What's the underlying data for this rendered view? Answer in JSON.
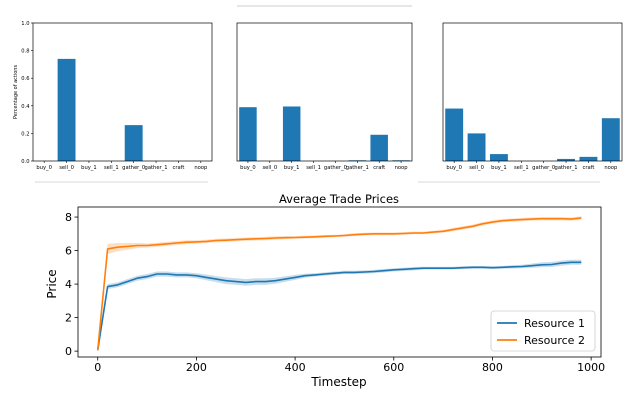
{
  "chart_data": [
    {
      "type": "bar",
      "ylabel": "Percentage of actions",
      "ylim": [
        0,
        1.0
      ],
      "yticks": [
        "0.0",
        "0.2",
        "0.4",
        "0.6",
        "0.8",
        "1.0"
      ],
      "categories": [
        "buy_0",
        "sell_0",
        "buy_1",
        "sell_1",
        "gather_0",
        "gather_1",
        "craft",
        "noop"
      ],
      "values": [
        0,
        0.74,
        0,
        0,
        0.26,
        0,
        0,
        0
      ],
      "color": "#1f77b4"
    },
    {
      "type": "bar",
      "ylim": [
        0,
        1.0
      ],
      "categories": [
        "buy_0",
        "sell_0",
        "buy_1",
        "sell_1",
        "gather_0",
        "gather_1",
        "craft",
        "noop"
      ],
      "values": [
        0.39,
        0,
        0.395,
        0,
        0,
        0.005,
        0.19,
        0.005
      ],
      "color": "#1f77b4"
    },
    {
      "type": "bar",
      "ylim": [
        0,
        1.0
      ],
      "categories": [
        "buy_0",
        "sell_0",
        "buy_1",
        "sell_1",
        "gather_0",
        "gather_1",
        "craft",
        "noop"
      ],
      "values": [
        0.38,
        0.2,
        0.05,
        0,
        0,
        0.015,
        0.03,
        0.31
      ],
      "color": "#1f77b4"
    },
    {
      "type": "line",
      "title": "Average Trade Prices",
      "xlabel": "Timestep",
      "ylabel": "Price",
      "xlim": [
        -40,
        1020
      ],
      "ylim": [
        -0.35,
        8.6
      ],
      "xticks": [
        0,
        200,
        400,
        600,
        800,
        1000
      ],
      "yticks": [
        0,
        2,
        4,
        6,
        8
      ],
      "legend_position": "bottom-right",
      "series": [
        {
          "name": "Resource 1",
          "color": "#1f77b4",
          "x": [
            0,
            20,
            40,
            60,
            80,
            100,
            120,
            140,
            160,
            180,
            200,
            220,
            240,
            260,
            280,
            300,
            320,
            340,
            360,
            380,
            400,
            420,
            440,
            460,
            480,
            500,
            520,
            540,
            560,
            580,
            600,
            620,
            640,
            660,
            680,
            700,
            720,
            740,
            760,
            780,
            800,
            820,
            840,
            860,
            880,
            900,
            920,
            940,
            960,
            980
          ],
          "y": [
            0.05,
            3.85,
            3.95,
            4.15,
            4.35,
            4.45,
            4.6,
            4.6,
            4.55,
            4.55,
            4.5,
            4.4,
            4.3,
            4.2,
            4.15,
            4.1,
            4.15,
            4.15,
            4.2,
            4.3,
            4.4,
            4.5,
            4.55,
            4.6,
            4.65,
            4.7,
            4.7,
            4.72,
            4.75,
            4.8,
            4.85,
            4.88,
            4.92,
            4.95,
            4.95,
            4.95,
            4.95,
            4.98,
            5.0,
            5.0,
            4.98,
            5.0,
            5.03,
            5.05,
            5.1,
            5.15,
            5.17,
            5.25,
            5.3,
            5.3
          ],
          "band": [
            0,
            0.15,
            0.15,
            0.15,
            0.15,
            0.15,
            0.15,
            0.15,
            0.15,
            0.15,
            0.15,
            0.17,
            0.18,
            0.2,
            0.2,
            0.2,
            0.2,
            0.2,
            0.18,
            0.17,
            0.15,
            0.12,
            0.1,
            0.1,
            0.1,
            0.1,
            0.1,
            0.1,
            0.1,
            0.1,
            0.1,
            0.1,
            0.1,
            0.08,
            0.08,
            0.08,
            0.08,
            0.08,
            0.08,
            0.08,
            0.08,
            0.08,
            0.1,
            0.1,
            0.12,
            0.15,
            0.15,
            0.15,
            0.15,
            0.15
          ]
        },
        {
          "name": "Resource 2",
          "color": "#ff7f0e",
          "x": [
            0,
            20,
            40,
            60,
            80,
            100,
            120,
            140,
            160,
            180,
            200,
            220,
            240,
            260,
            280,
            300,
            320,
            340,
            360,
            380,
            400,
            420,
            440,
            460,
            480,
            500,
            520,
            540,
            560,
            580,
            600,
            620,
            640,
            660,
            680,
            700,
            720,
            740,
            760,
            780,
            800,
            820,
            840,
            860,
            880,
            900,
            920,
            940,
            960,
            980
          ],
          "y": [
            0.05,
            6.1,
            6.2,
            6.25,
            6.3,
            6.3,
            6.35,
            6.4,
            6.45,
            6.5,
            6.52,
            6.55,
            6.6,
            6.62,
            6.65,
            6.68,
            6.7,
            6.72,
            6.75,
            6.77,
            6.78,
            6.8,
            6.82,
            6.85,
            6.87,
            6.9,
            6.95,
            6.98,
            7.0,
            7.0,
            7.0,
            7.02,
            7.05,
            7.05,
            7.1,
            7.15,
            7.25,
            7.35,
            7.45,
            7.6,
            7.7,
            7.78,
            7.82,
            7.85,
            7.88,
            7.9,
            7.9,
            7.9,
            7.88,
            7.95
          ],
          "band": [
            0,
            0.3,
            0.25,
            0.2,
            0.15,
            0.12,
            0.12,
            0.12,
            0.12,
            0.12,
            0.1,
            0.1,
            0.1,
            0.1,
            0.1,
            0.1,
            0.1,
            0.1,
            0.1,
            0.1,
            0.08,
            0.08,
            0.08,
            0.08,
            0.08,
            0.08,
            0.08,
            0.08,
            0.08,
            0.08,
            0.08,
            0.08,
            0.08,
            0.08,
            0.08,
            0.08,
            0.1,
            0.1,
            0.1,
            0.1,
            0.1,
            0.1,
            0.1,
            0.1,
            0.1,
            0.1,
            0.1,
            0.1,
            0.1,
            0.1
          ]
        }
      ]
    }
  ]
}
